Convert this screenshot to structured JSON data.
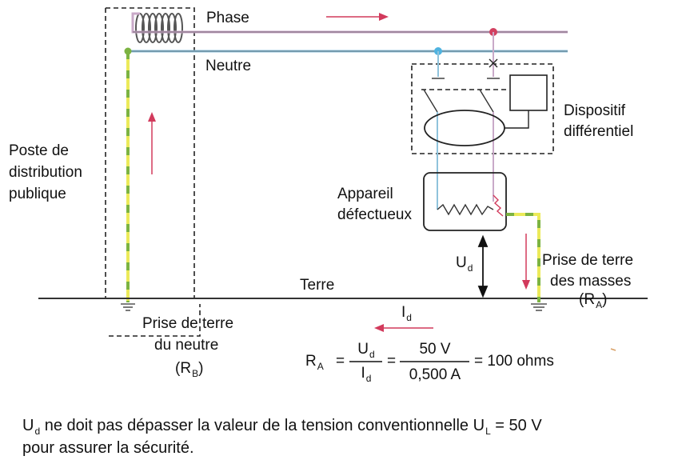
{
  "labels": {
    "phase": "Phase",
    "neutre": "Neutre",
    "poste_line1": "Poste de",
    "poste_line2": "distribution",
    "poste_line3": "publique",
    "dispositif_line1": "Dispositif",
    "dispositif_line2": "différentiel",
    "appareil_line1": "Appareil",
    "appareil_line2": "défectueux",
    "terre": "Terre",
    "prise_masses_line1": "Prise de terre",
    "prise_masses_line2": "des masses",
    "ra_main": "(R",
    "ra_sub": "A",
    "ra_close": ")",
    "prise_neutre_line1": "Prise de terre",
    "prise_neutre_line2": "du neutre",
    "rb_main": "(R",
    "rb_sub": "B",
    "rb_close": ")",
    "ud_main": "U",
    "ud_sub": "d",
    "id_main": "I",
    "id_sub": "d"
  },
  "formula": {
    "lhs_main": "R",
    "lhs_sub": "A",
    "eq1": "=",
    "num1_main": "U",
    "num1_sub": "d",
    "den1_main": "I",
    "den1_sub": "d",
    "eq2": "=",
    "num2": "50 V",
    "den2": "0,500 A",
    "result": "= 100 ohms"
  },
  "footnote": {
    "u_main": "U",
    "u_sub": "d",
    "text1": " ne doit pas dépasser la valeur de la tension conventionnelle U",
    "ul_sub": "L",
    "text2": " = 50 V",
    "line2": "pour assurer la sécurité."
  },
  "colors": {
    "phase_wire": "#c9a9c8",
    "neutral_wire": "#8fc3dc",
    "earth_green": "#7cb342",
    "earth_yellow": "#ecea5a",
    "arrow_red": "#d23a5c",
    "neutral_dot": "#4fb3e0",
    "phase_dot": "#d24060"
  }
}
